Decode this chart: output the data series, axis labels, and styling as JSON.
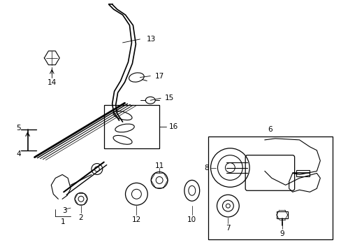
{
  "bg_color": "#ffffff",
  "line_color": "#000000",
  "label_color": "#000000",
  "figsize": [
    4.89,
    3.6
  ],
  "dpi": 100
}
